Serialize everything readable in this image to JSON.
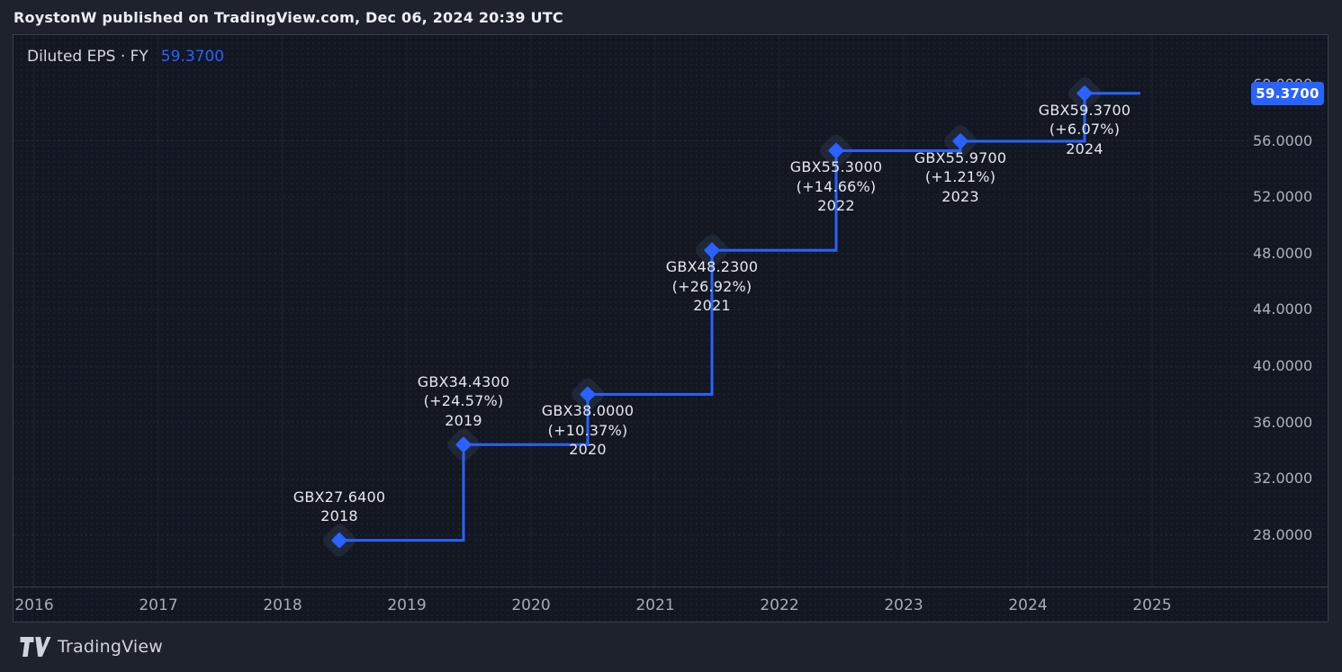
{
  "header": {
    "title": "RoystonW published on TradingView.com, Dec 06, 2024 20:39 UTC"
  },
  "legend": {
    "series_name": "Diluted EPS · FY",
    "value": "59.3700"
  },
  "price_scale": {
    "last_value_label": "59.3700"
  },
  "footer": {
    "brand": "TradingView"
  },
  "colors": {
    "accent_blue": "#2962FF",
    "chart_background": "#131722",
    "page_background": "#1e222d",
    "label_text": "#e6e8ed",
    "axis_text": "#aeb2bc"
  },
  "chart_data": {
    "type": "line",
    "style": "step-line-with-diamond-markers",
    "title": "Diluted EPS · FY",
    "legend_position": "top-left",
    "grid": true,
    "x": [
      2018,
      2019,
      2020,
      2021,
      2022,
      2023,
      2024
    ],
    "values": [
      27.64,
      34.43,
      38.0,
      48.23,
      55.3,
      55.97,
      59.37
    ],
    "points": [
      {
        "year": "2018",
        "value": 27.64,
        "label": "GBX27.6400",
        "change": null,
        "label_side": "above"
      },
      {
        "year": "2019",
        "value": 34.43,
        "label": "GBX34.4300",
        "change": "(+24.57%)",
        "label_side": "above"
      },
      {
        "year": "2020",
        "value": 38.0,
        "label": "GBX38.0000",
        "change": "(+10.37%)",
        "label_side": "below"
      },
      {
        "year": "2021",
        "value": 48.23,
        "label": "GBX48.2300",
        "change": "(+26.92%)",
        "label_side": "below"
      },
      {
        "year": "2022",
        "value": 55.3,
        "label": "GBX55.3000",
        "change": "(+14.66%)",
        "label_side": "below"
      },
      {
        "year": "2023",
        "value": 55.97,
        "label": "GBX55.9700",
        "change": "(+1.21%)",
        "label_side": "below"
      },
      {
        "year": "2024",
        "value": 59.37,
        "label": "GBX59.3700",
        "change": "(+6.07%)",
        "label_side": "below"
      }
    ],
    "xlabel": "",
    "ylabel": "",
    "x_axis": {
      "ticks": [
        "2016",
        "2017",
        "2018",
        "2019",
        "2020",
        "2021",
        "2022",
        "2023",
        "2024",
        "2025"
      ]
    },
    "y_axis": {
      "ticks": [
        "60.0000",
        "56.0000",
        "52.0000",
        "48.0000",
        "44.0000",
        "40.0000",
        "36.0000",
        "32.0000",
        "28.0000"
      ],
      "range": [
        26.3,
        61.6
      ],
      "side": "right"
    },
    "last_price_marker": "59.3700",
    "line_color": "#2962FF"
  }
}
